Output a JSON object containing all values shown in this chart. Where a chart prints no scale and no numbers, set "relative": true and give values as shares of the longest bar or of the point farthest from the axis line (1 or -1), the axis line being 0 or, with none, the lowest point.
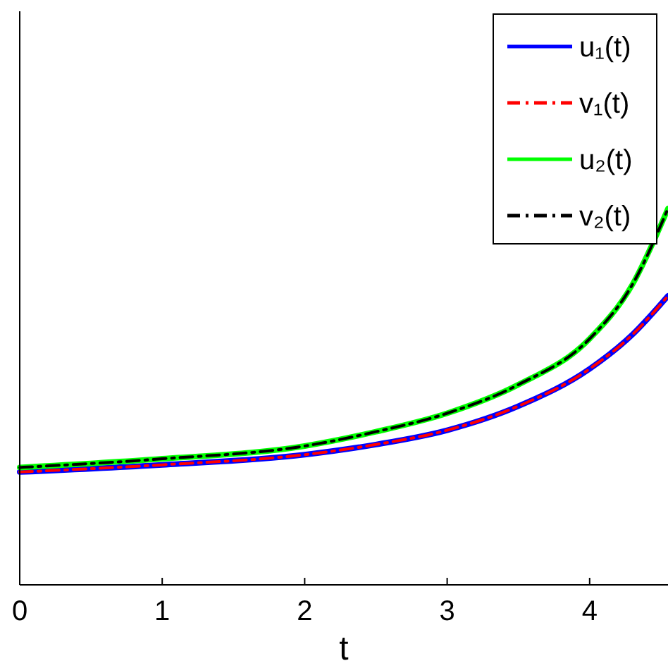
{
  "chart_data": {
    "type": "line",
    "relative": true,
    "xlabel": "t",
    "x": [
      0,
      1,
      2,
      2.5,
      3,
      3.5,
      4,
      4.3,
      4.55
    ],
    "xlim": [
      0,
      4.55
    ],
    "xticks": [
      0,
      1,
      2,
      3,
      4
    ],
    "legend": "top right",
    "grid": false,
    "series": [
      {
        "name": "u₁(t)",
        "color": "#0000ff",
        "line_style": "solid",
        "values": [
          0.3,
          0.319,
          0.346,
          0.373,
          0.411,
          0.475,
          0.574,
          0.665,
          0.768
        ]
      },
      {
        "name": "v₁(t)",
        "color": "#ff0000",
        "line_style": "dashed",
        "values": [
          0.3,
          0.319,
          0.346,
          0.373,
          0.411,
          0.475,
          0.574,
          0.665,
          0.768
        ]
      },
      {
        "name": "u₂(t)",
        "color": "#00ff00",
        "line_style": "solid",
        "values": [
          0.312,
          0.335,
          0.369,
          0.407,
          0.456,
          0.532,
          0.654,
          0.798,
          1
        ]
      },
      {
        "name": "v₂(t)",
        "color": "#000000",
        "line_style": "dashed",
        "values": [
          0.312,
          0.335,
          0.369,
          0.407,
          0.456,
          0.532,
          0.654,
          0.798,
          1
        ]
      }
    ]
  }
}
